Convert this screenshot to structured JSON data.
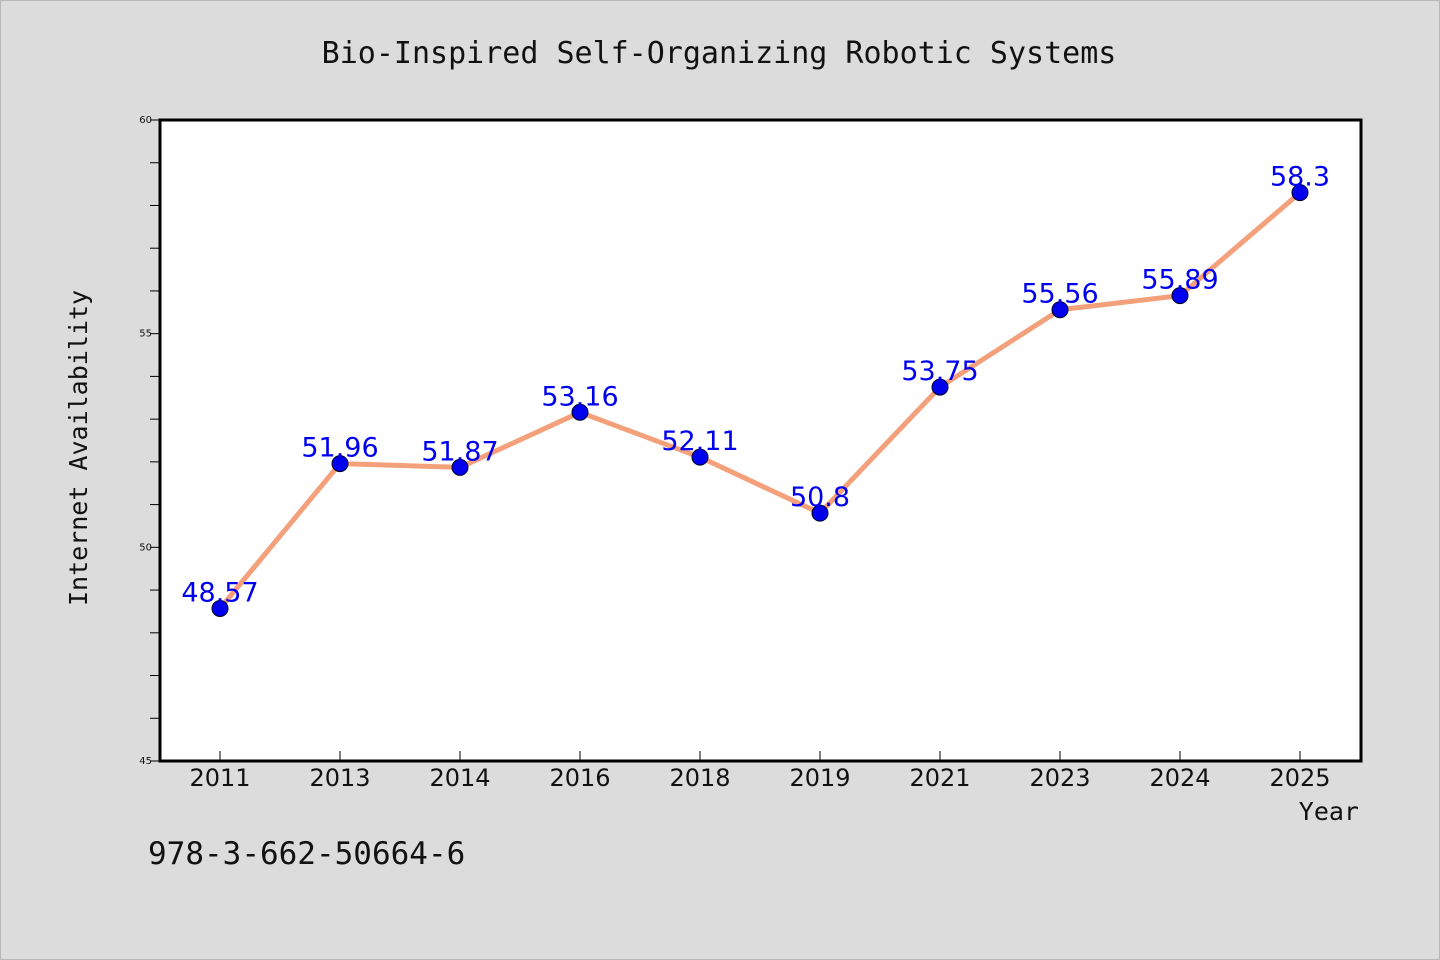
{
  "chart_data": {
    "type": "line",
    "title": "Bio-Inspired Self-Organizing Robotic Systems",
    "xlabel": "Year",
    "ylabel": "Internet Availability",
    "categories": [
      "2011",
      "2013",
      "2014",
      "2016",
      "2018",
      "2019",
      "2021",
      "2023",
      "2024",
      "2025"
    ],
    "series": [
      {
        "values": [
          48.57,
          51.96,
          51.87,
          53.16,
          52.11,
          50.8,
          53.75,
          55.56,
          55.89,
          58.3
        ],
        "data_labels": [
          "48.57",
          "51.96",
          "51.87",
          "53.16",
          "52.11",
          "50.8",
          "53.75",
          "55.56",
          "55.89",
          "58.3"
        ]
      }
    ],
    "ylim": [
      45,
      60
    ],
    "yticks": [
      "45",
      "50",
      "55",
      "60"
    ],
    "grid": false,
    "legend": "none",
    "colors": {
      "line": "#f4a07a",
      "marker": "#0000ee",
      "data_label": "#0000ee",
      "plot_background": "#ffffff",
      "figure_background": "#dcdcdc"
    }
  },
  "footer": {
    "isbn": "978-3-662-50664-6"
  }
}
